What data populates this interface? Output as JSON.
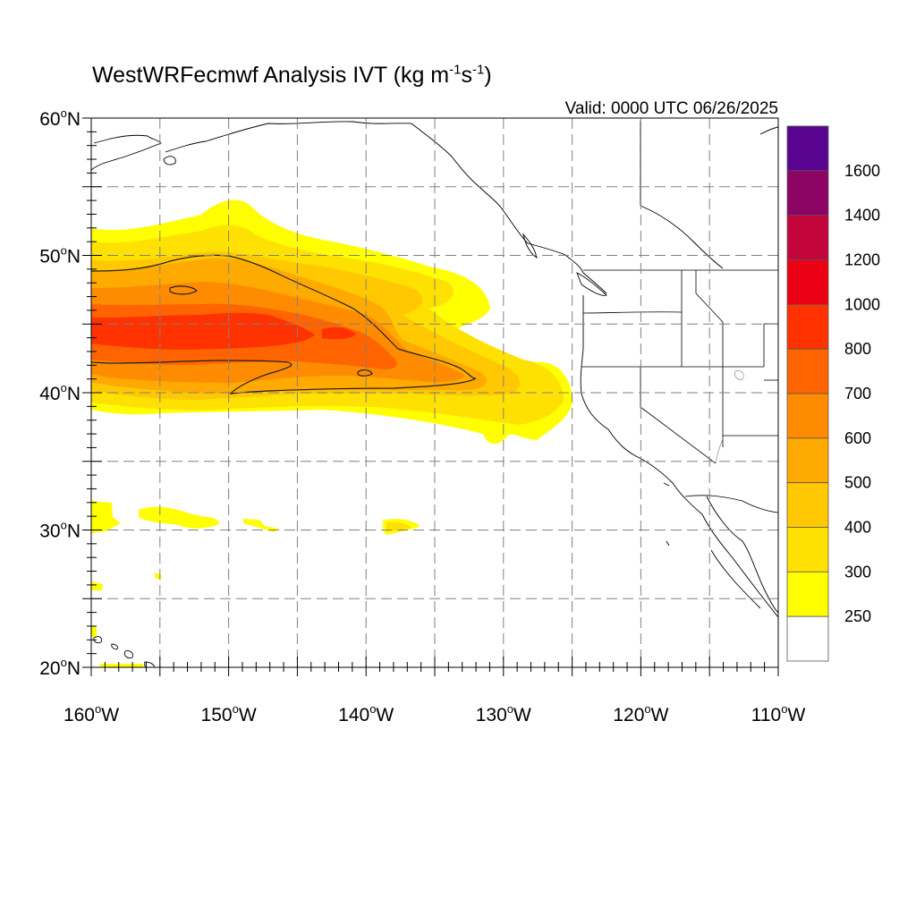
{
  "header": {
    "title_main": "WestWRFecmwf Analysis IVT (kg m",
    "title_sup1": "-1",
    "title_mid": "s",
    "title_sup2": "-1",
    "title_end": ")",
    "valid": "Valid: 0000 UTC 06/26/2025"
  },
  "axes": {
    "lat_labels": [
      "60",
      "50",
      "40",
      "30",
      "20"
    ],
    "lat_suffix": "N",
    "lon_labels": [
      "160",
      "150",
      "140",
      "130",
      "120",
      "110"
    ],
    "lon_suffix": "W",
    "degree": "o"
  },
  "colorbar": {
    "labels": [
      "1600",
      "1400",
      "1200",
      "1000",
      "800",
      "700",
      "600",
      "500",
      "400",
      "300",
      "250"
    ],
    "colors": [
      "#5a0591",
      "#8c0564",
      "#c3053c",
      "#eb0014",
      "#ff3200",
      "#ff6400",
      "#ff8c00",
      "#ffaa00",
      "#ffc800",
      "#ffe100",
      "#ffff00",
      "#ffffff"
    ]
  },
  "map": {
    "extent": {
      "lon_min": -160,
      "lon_max": -110,
      "lat_min": 20,
      "lat_max": 60
    },
    "gridlines": "dashed",
    "field_colors": {
      "c250": "#ffff00",
      "c300": "#ffe100",
      "c400": "#ffc800",
      "c500": "#ffaa00",
      "c600": "#ff8c00",
      "c700": "#ff6400",
      "c800": "#ff3200"
    }
  }
}
